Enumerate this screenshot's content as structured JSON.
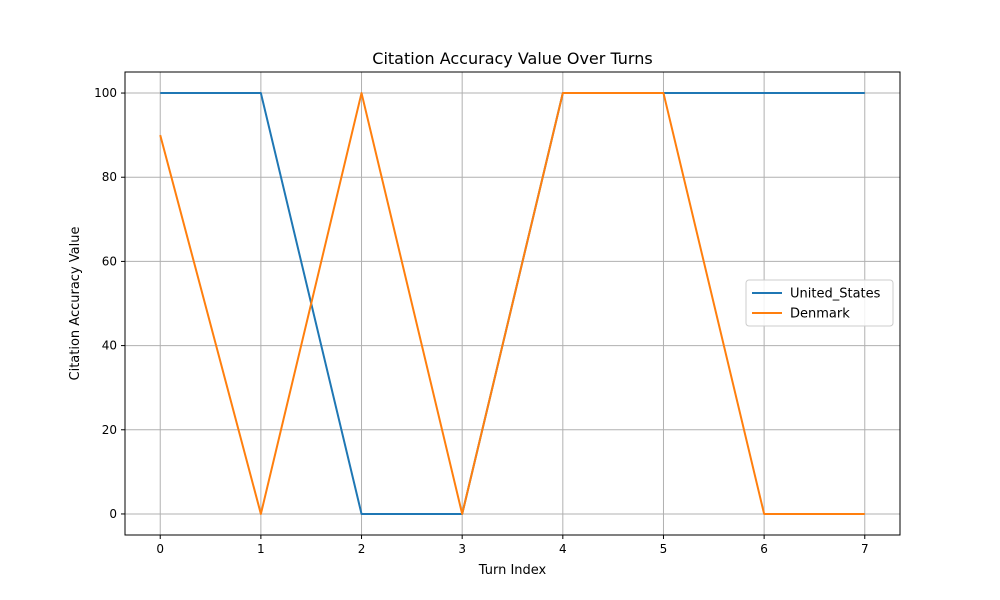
{
  "chart_data": {
    "type": "line",
    "title": "Citation Accuracy Value Over Turns",
    "xlabel": "Turn Index",
    "ylabel": "Citation Accuracy Value",
    "x": [
      0,
      1,
      2,
      3,
      4,
      5,
      6,
      7
    ],
    "xlim": [
      -0.35,
      7.35
    ],
    "ylim": [
      -5,
      105
    ],
    "xticks": [
      0,
      1,
      2,
      3,
      4,
      5,
      6,
      7
    ],
    "yticks": [
      0,
      20,
      40,
      60,
      80,
      100
    ],
    "grid": true,
    "legend_position": "center-right",
    "series": [
      {
        "name": "United_States",
        "color": "#1f77b4",
        "values": [
          100,
          100,
          0,
          0,
          100,
          100,
          100,
          100
        ]
      },
      {
        "name": "Denmark",
        "color": "#ff7f0e",
        "values": [
          90,
          0,
          100,
          0,
          100,
          100,
          0,
          0
        ]
      }
    ]
  }
}
